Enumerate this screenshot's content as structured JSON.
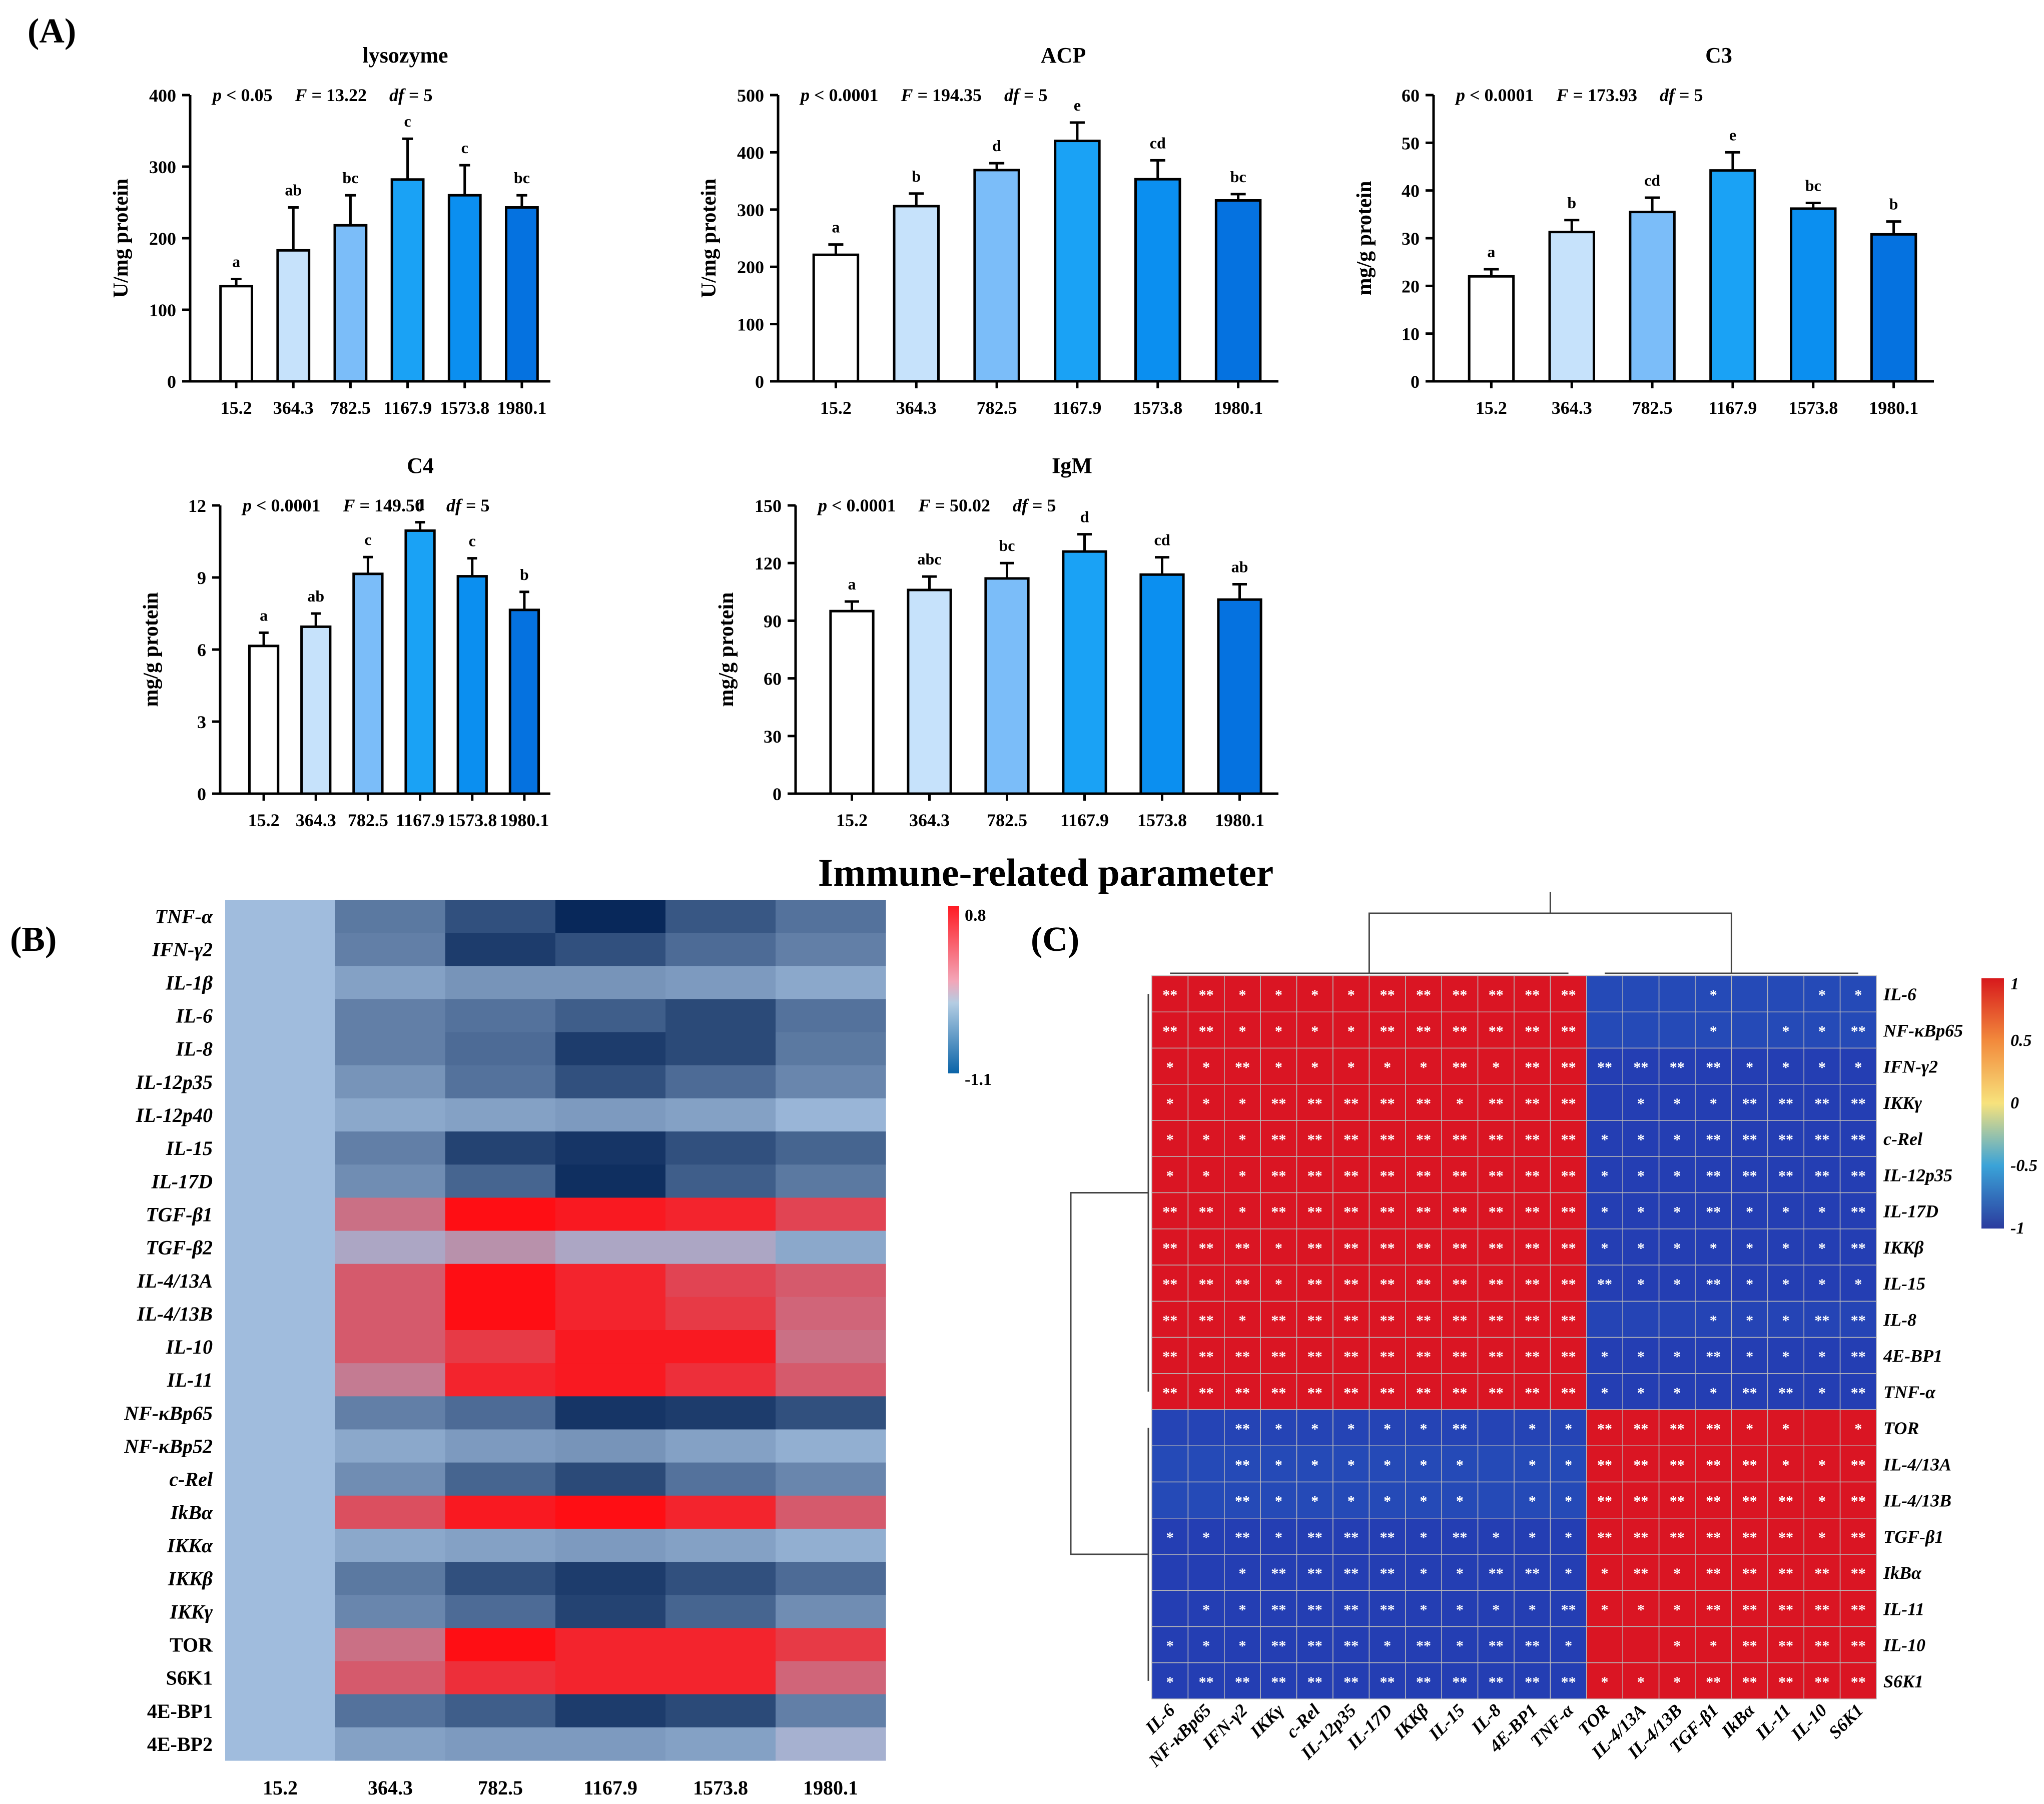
{
  "panels": {
    "A": {
      "label": "(A)",
      "suptitle": "Immune-related parameter"
    },
    "B": {
      "label": "(B)"
    },
    "C": {
      "label": "(C)"
    }
  },
  "chart_data": [
    {
      "id": "lysozyme",
      "type": "bar",
      "title": "lysozyme",
      "stats": {
        "p": "p < 0.05",
        "F": "F = 13.22",
        "df": "df = 5"
      },
      "categories": [
        "15.2",
        "364.3",
        "782.5",
        "1167.9",
        "1573.8",
        "1980.1"
      ],
      "values": [
        133,
        183,
        218,
        282,
        260,
        243
      ],
      "errors": [
        10,
        60,
        42,
        57,
        42,
        17
      ],
      "letters": [
        "a",
        "ab",
        "bc",
        "c",
        "c",
        "bc"
      ],
      "ylabel": "U/mg protein",
      "ylim": [
        0,
        400
      ],
      "yticks": [
        0,
        100,
        200,
        300,
        400
      ]
    },
    {
      "id": "ACP",
      "type": "bar",
      "title": "ACP",
      "stats": {
        "p": "p < 0.0001",
        "F": "F = 194.35",
        "df": "df = 5"
      },
      "categories": [
        "15.2",
        "364.3",
        "782.5",
        "1167.9",
        "1573.8",
        "1980.1"
      ],
      "values": [
        221,
        306,
        369,
        420,
        353,
        316
      ],
      "errors": [
        18,
        22,
        12,
        32,
        33,
        11
      ],
      "letters": [
        "a",
        "b",
        "d",
        "e",
        "cd",
        "bc"
      ],
      "ylabel": "U/mg protein",
      "ylim": [
        0,
        500
      ],
      "yticks": [
        0,
        100,
        200,
        300,
        400,
        500
      ]
    },
    {
      "id": "C3",
      "type": "bar",
      "title": "C3",
      "stats": {
        "p": "p < 0.0001",
        "F": "F = 173.93",
        "df": "df = 5"
      },
      "categories": [
        "15.2",
        "364.3",
        "782.5",
        "1167.9",
        "1573.8",
        "1980.1"
      ],
      "values": [
        22,
        31.3,
        35.5,
        44.2,
        36.2,
        30.8
      ],
      "errors": [
        1.5,
        2.5,
        3,
        3.8,
        1.2,
        2.7
      ],
      "letters": [
        "a",
        "b",
        "cd",
        "e",
        "bc",
        "b"
      ],
      "ylabel": "mg/g protein",
      "ylim": [
        0,
        60
      ],
      "yticks": [
        0,
        10,
        20,
        30,
        40,
        50,
        60
      ]
    },
    {
      "id": "C4",
      "type": "bar",
      "title": "C4",
      "stats": {
        "p": "p < 0.0001",
        "F": "F = 149.50",
        "df": "df = 5"
      },
      "categories": [
        "15.2",
        "364.3",
        "782.5",
        "1167.9",
        "1573.8",
        "1980.1"
      ],
      "values": [
        6.15,
        6.95,
        9.15,
        10.95,
        9.05,
        7.65
      ],
      "errors": [
        0.55,
        0.55,
        0.7,
        0.35,
        0.75,
        0.75
      ],
      "letters": [
        "a",
        "ab",
        "c",
        "d",
        "c",
        "b"
      ],
      "ylabel": "mg/g protein",
      "ylim": [
        0,
        12
      ],
      "yticks": [
        0,
        3,
        6,
        9,
        12
      ]
    },
    {
      "id": "IgM",
      "type": "bar",
      "title": "IgM",
      "stats": {
        "p": "p < 0.0001",
        "F": "F = 50.02",
        "df": "df = 5"
      },
      "categories": [
        "15.2",
        "364.3",
        "782.5",
        "1167.9",
        "1573.8",
        "1980.1"
      ],
      "values": [
        95,
        106,
        112,
        126,
        114,
        101
      ],
      "errors": [
        5,
        7,
        8,
        9,
        9,
        8
      ],
      "letters": [
        "a",
        "abc",
        "bc",
        "d",
        "cd",
        "ab"
      ],
      "ylabel": "mg/g protein",
      "ylim": [
        0,
        150
      ],
      "yticks": [
        0,
        30,
        60,
        90,
        120,
        150
      ]
    },
    {
      "id": "heatmap_B",
      "type": "heatmap",
      "x": [
        "15.2",
        "364.3",
        "782.5",
        "1167.9",
        "1573.8",
        "1980.1"
      ],
      "y": [
        "TNF-α",
        "IFN-γ2",
        "IL-1β",
        "IL-6",
        "IL-8",
        "IL-12p35",
        "IL-12p40",
        "IL-15",
        "IL-17D",
        "TGF-β1",
        "TGF-β2",
        "IL-4/13A",
        "IL-4/13B",
        "IL-10",
        "IL-11",
        "NF-κBp65",
        "NF-κBp52",
        "c-Rel",
        "IkBα",
        "IKKα",
        "IKKβ",
        "IKKγ",
        "TOR",
        "S6K1",
        "4E-BP1",
        "4E-BP2"
      ],
      "italic_rows": 22,
      "colorbar": {
        "min": -1.1,
        "max": 0.8,
        "min_label": "-1.1",
        "max_label": "0.8"
      },
      "values": [
        [
          0,
          -0.5,
          -0.8,
          -1.1,
          -0.75,
          -0.55
        ],
        [
          0,
          -0.45,
          -0.95,
          -0.8,
          -0.6,
          -0.45
        ],
        [
          0,
          -0.2,
          -0.3,
          -0.3,
          -0.25,
          -0.15
        ],
        [
          0,
          -0.45,
          -0.55,
          -0.7,
          -0.85,
          -0.55
        ],
        [
          0,
          -0.45,
          -0.6,
          -0.95,
          -0.85,
          -0.5
        ],
        [
          0,
          -0.3,
          -0.55,
          -0.8,
          -0.6,
          -0.4
        ],
        [
          0,
          -0.15,
          -0.2,
          -0.25,
          -0.2,
          -0.05
        ],
        [
          0,
          -0.45,
          -0.9,
          -1.0,
          -0.8,
          -0.65
        ],
        [
          0,
          -0.35,
          -0.65,
          -1.05,
          -0.7,
          -0.5
        ],
        [
          0,
          0.35,
          0.8,
          0.75,
          0.7,
          0.55
        ],
        [
          0,
          0.1,
          0.2,
          0.1,
          0.1,
          -0.15
        ],
        [
          0,
          0.45,
          0.8,
          0.7,
          0.55,
          0.45
        ],
        [
          0,
          0.45,
          0.8,
          0.7,
          0.6,
          0.4
        ],
        [
          0,
          0.45,
          0.6,
          0.75,
          0.75,
          0.35
        ],
        [
          0,
          0.3,
          0.7,
          0.75,
          0.65,
          0.45
        ],
        [
          0,
          -0.45,
          -0.6,
          -1.0,
          -0.95,
          -0.8
        ],
        [
          0,
          -0.15,
          -0.25,
          -0.3,
          -0.2,
          -0.1
        ],
        [
          0,
          -0.35,
          -0.65,
          -0.85,
          -0.55,
          -0.4
        ],
        [
          0,
          0.5,
          0.75,
          0.8,
          0.7,
          0.45
        ],
        [
          0,
          -0.15,
          -0.2,
          -0.25,
          -0.2,
          -0.1
        ],
        [
          0,
          -0.5,
          -0.8,
          -0.95,
          -0.8,
          -0.6
        ],
        [
          0,
          -0.4,
          -0.6,
          -0.9,
          -0.65,
          -0.35
        ],
        [
          0,
          0.35,
          0.8,
          0.7,
          0.7,
          0.6
        ],
        [
          0,
          0.45,
          0.65,
          0.7,
          0.7,
          0.4
        ],
        [
          0,
          -0.55,
          -0.7,
          -0.95,
          -0.85,
          -0.45
        ],
        [
          0,
          -0.2,
          -0.25,
          -0.25,
          -0.2,
          0.05
        ]
      ]
    },
    {
      "id": "heatmap_C",
      "type": "heatmap",
      "subtype": "correlation",
      "row_labels": [
        "IL-6",
        "NF-κBp65",
        "IFN-γ2",
        "IKKγ",
        "c-Rel",
        "IL-12p35",
        "IL-17D",
        "IKKβ",
        "IL-15",
        "IL-8",
        "4E-BP1",
        "TNF-α",
        "TOR",
        "IL-4/13A",
        "IL-4/13B",
        "TGF-β1",
        "IkBα",
        "IL-11",
        "IL-10",
        "S6K1"
      ],
      "col_labels": [
        "IL-6",
        "NF-κBp65",
        "IFN-γ2",
        "IKKγ",
        "c-Rel",
        "IL-12p35",
        "IL-17D",
        "IKKβ",
        "IL-15",
        "IL-8",
        "4E-BP1",
        "TNF-α",
        "TOR",
        "IL-4/13A",
        "IL-4/13B",
        "TGF-β1",
        "IkBα",
        "IL-11",
        "IL-10",
        "S6K1"
      ],
      "group_size": 12,
      "same_group_r": 0.9,
      "cross_group_r": -0.9,
      "cross_block_r_by_row": [
        -0.8,
        -0.8,
        -0.9,
        -0.9,
        -0.9,
        -0.9,
        -0.9,
        -0.9,
        -0.9,
        -0.85,
        -0.9,
        -0.9,
        -0.85,
        -0.8,
        -0.8,
        -0.9,
        -0.9,
        -0.9,
        -0.9,
        -0.9
      ],
      "colorbar": {
        "min": -1,
        "max": 1,
        "ticks": [
          "1",
          "0.5",
          "0",
          "-0.5",
          "-1"
        ]
      },
      "significance": [
        [
          "**",
          "**",
          "*",
          "*",
          "*",
          "*",
          "**",
          "**",
          "**",
          "**",
          "**",
          "**",
          "",
          "",
          "",
          "*",
          "",
          "",
          "*",
          "*"
        ],
        [
          "**",
          "**",
          "*",
          "*",
          "*",
          "*",
          "**",
          "**",
          "**",
          "**",
          "**",
          "**",
          "",
          "",
          "",
          "*",
          "",
          "*",
          "*",
          "**"
        ],
        [
          "*",
          "*",
          "**",
          "*",
          "*",
          "*",
          "*",
          "*",
          "**",
          "*",
          "**",
          "**",
          "**",
          "**",
          "**",
          "**",
          "*",
          "*",
          "*",
          "*"
        ],
        [
          "*",
          "*",
          "*",
          "**",
          "**",
          "**",
          "**",
          "**",
          "*",
          "**",
          "**",
          "**",
          "",
          "*",
          "*",
          "*",
          "**",
          "**",
          "**",
          "**"
        ],
        [
          "*",
          "*",
          "*",
          "**",
          "**",
          "**",
          "**",
          "**",
          "**",
          "**",
          "**",
          "**",
          "*",
          "*",
          "*",
          "**",
          "**",
          "**",
          "**",
          "**"
        ],
        [
          "*",
          "*",
          "*",
          "**",
          "**",
          "**",
          "**",
          "**",
          "**",
          "**",
          "**",
          "**",
          "*",
          "*",
          "*",
          "**",
          "**",
          "**",
          "**",
          "**"
        ],
        [
          "**",
          "**",
          "*",
          "**",
          "**",
          "**",
          "**",
          "**",
          "**",
          "**",
          "**",
          "**",
          "*",
          "*",
          "*",
          "**",
          "*",
          "*",
          "*",
          "**"
        ],
        [
          "**",
          "**",
          "**",
          "*",
          "**",
          "**",
          "**",
          "**",
          "**",
          "**",
          "**",
          "**",
          "*",
          "*",
          "*",
          "*",
          "*",
          "*",
          "*",
          "**"
        ],
        [
          "**",
          "**",
          "**",
          "*",
          "**",
          "**",
          "**",
          "**",
          "**",
          "**",
          "**",
          "**",
          "**",
          "*",
          "*",
          "**",
          "*",
          "*",
          "*",
          "*"
        ],
        [
          "**",
          "**",
          "*",
          "**",
          "**",
          "**",
          "**",
          "**",
          "**",
          "**",
          "**",
          "**",
          "",
          "",
          "",
          "*",
          "*",
          "*",
          "**",
          "**"
        ],
        [
          "**",
          "**",
          "**",
          "**",
          "**",
          "**",
          "**",
          "**",
          "**",
          "**",
          "**",
          "**",
          "*",
          "*",
          "*",
          "**",
          "*",
          "*",
          "*",
          "**"
        ],
        [
          "**",
          "**",
          "**",
          "**",
          "**",
          "**",
          "**",
          "**",
          "**",
          "**",
          "**",
          "**",
          "*",
          "*",
          "*",
          "*",
          "**",
          "**",
          "*",
          "**"
        ],
        [
          "",
          "",
          "**",
          "*",
          "*",
          "*",
          "*",
          "*",
          "**",
          "",
          "*",
          "*",
          "**",
          "**",
          "**",
          "**",
          "*",
          "*",
          "",
          "*"
        ],
        [
          "",
          "",
          "**",
          "*",
          "*",
          "*",
          "*",
          "*",
          "*",
          "",
          "*",
          "*",
          "**",
          "**",
          "**",
          "**",
          "**",
          "*",
          "*",
          "**"
        ],
        [
          "",
          "",
          "**",
          "*",
          "*",
          "*",
          "*",
          "*",
          "*",
          "",
          "*",
          "*",
          "**",
          "**",
          "**",
          "**",
          "**",
          "**",
          "*",
          "**"
        ],
        [
          "*",
          "*",
          "**",
          "*",
          "**",
          "**",
          "**",
          "*",
          "**",
          "*",
          "*",
          "*",
          "**",
          "**",
          "**",
          "**",
          "**",
          "**",
          "*",
          "**"
        ],
        [
          "",
          "",
          "*",
          "**",
          "**",
          "**",
          "**",
          "*",
          "*",
          "**",
          "**",
          "*",
          "*",
          "**",
          "*",
          "**",
          "**",
          "**",
          "**",
          "**"
        ],
        [
          "",
          "*",
          "*",
          "**",
          "**",
          "**",
          "**",
          "*",
          "*",
          "*",
          "*",
          "**",
          "*",
          "*",
          "*",
          "**",
          "**",
          "**",
          "**",
          "**"
        ],
        [
          "*",
          "*",
          "*",
          "**",
          "**",
          "**",
          "*",
          "**",
          "*",
          "**",
          "**",
          "*",
          "",
          "",
          "*",
          "*",
          "**",
          "**",
          "**",
          "**"
        ],
        [
          "*",
          "**",
          "**",
          "**",
          "**",
          "**",
          "**",
          "**",
          "**",
          "**",
          "**",
          "**",
          "*",
          "*",
          "*",
          "**",
          "**",
          "**",
          "**",
          "**"
        ]
      ]
    }
  ]
}
